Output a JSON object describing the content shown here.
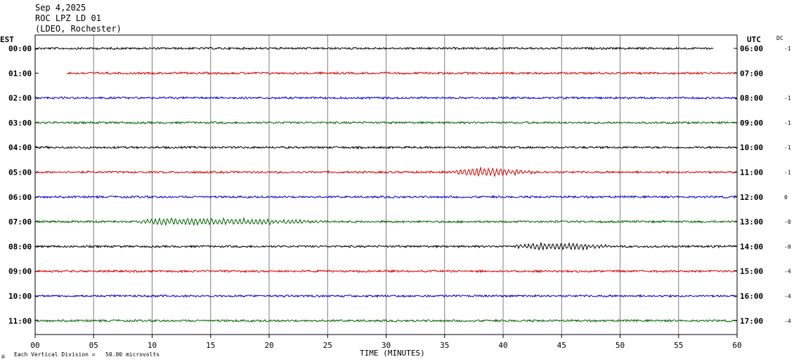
{
  "header": {
    "date": "Sep 4,2025",
    "station": "ROC LPZ LD 01",
    "network": "(LDEO, Rochester)"
  },
  "left_axis_label": "EST",
  "right_axis_label": "UTC",
  "dc_label": "DC",
  "footer_note": "Each Vertical Division =   50.00 microvolts",
  "corner_mark": "µ",
  "chart_data": {
    "type": "line",
    "xlabel": "TIME (MINUTES)",
    "xlim": [
      0,
      60
    ],
    "x_ticks": [
      "00",
      "05",
      "10",
      "15",
      "20",
      "25",
      "30",
      "35",
      "40",
      "45",
      "50",
      "55",
      "60"
    ],
    "x_gridlines": [
      5,
      10,
      15,
      20,
      25,
      30,
      35,
      40,
      45,
      50,
      55
    ],
    "series": [
      {
        "est": "00:00",
        "utc": "06:00",
        "dc": "-1",
        "color": "#000000",
        "start": 0,
        "end": 58,
        "events": []
      },
      {
        "est": "01:00",
        "utc": "07:00",
        "dc": "",
        "color": "#d40000",
        "start": 2.7,
        "end": 60,
        "events": []
      },
      {
        "est": "02:00",
        "utc": "08:00",
        "dc": "-1",
        "color": "#0000cc",
        "start": 0,
        "end": 60,
        "events": []
      },
      {
        "est": "03:00",
        "utc": "09:00",
        "dc": "-1",
        "color": "#006400",
        "start": 0,
        "end": 60,
        "events": []
      },
      {
        "est": "04:00",
        "utc": "10:00",
        "dc": "-1",
        "color": "#000000",
        "start": 0,
        "end": 60,
        "events": []
      },
      {
        "est": "05:00",
        "utc": "11:00",
        "dc": "-1",
        "color": "#d40000",
        "start": 0,
        "end": 60,
        "events": [
          {
            "start": 35.5,
            "end": 43.5,
            "amp": 6
          }
        ]
      },
      {
        "est": "06:00",
        "utc": "12:00",
        "dc": "0",
        "color": "#0000cc",
        "start": 0,
        "end": 60,
        "events": []
      },
      {
        "est": "07:00",
        "utc": "13:00",
        "dc": "-0",
        "color": "#006400",
        "start": 0,
        "end": 60,
        "events": [
          {
            "start": 8.5,
            "end": 26,
            "amp": 5
          }
        ]
      },
      {
        "est": "08:00",
        "utc": "14:00",
        "dc": "-0",
        "color": "#000000",
        "start": 0,
        "end": 60,
        "events": [
          {
            "start": 41,
            "end": 51,
            "amp": 5
          }
        ]
      },
      {
        "est": "09:00",
        "utc": "15:00",
        "dc": "-4",
        "color": "#d40000",
        "start": 0,
        "end": 60,
        "events": []
      },
      {
        "est": "10:00",
        "utc": "16:00",
        "dc": "-4",
        "color": "#0000cc",
        "start": 0,
        "end": 60,
        "events": []
      },
      {
        "est": "11:00",
        "utc": "17:00",
        "dc": "-4",
        "color": "#006400",
        "start": 0,
        "end": 60,
        "events": []
      }
    ]
  }
}
